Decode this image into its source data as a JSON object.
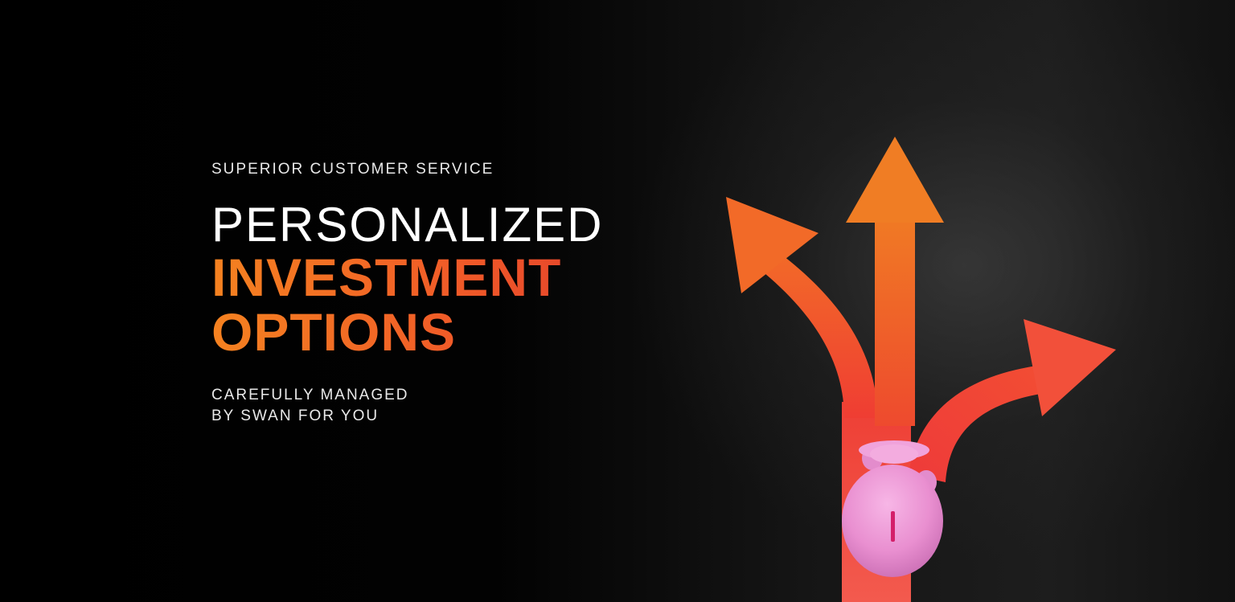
{
  "hero": {
    "eyebrow": "SUPERIOR CUSTOMER SERVICE",
    "headline_light": "PERSONALIZED",
    "headline_bold_line1": "INVESTMENT",
    "headline_bold_line2": "OPTIONS",
    "subline_line1": "CAREFULLY MANAGED",
    "subline_line2": "BY SWAN FOR YOU"
  },
  "colors": {
    "background": "#000000",
    "accent_orange": "#f58220",
    "accent_red": "#e03a2d",
    "text_white": "#ffffff",
    "piggy_pink": "#e98fd0"
  },
  "visual": {
    "icons": [
      "arrow-left-icon",
      "arrow-up-icon",
      "arrow-right-icon",
      "piggy-bank-icon"
    ]
  }
}
